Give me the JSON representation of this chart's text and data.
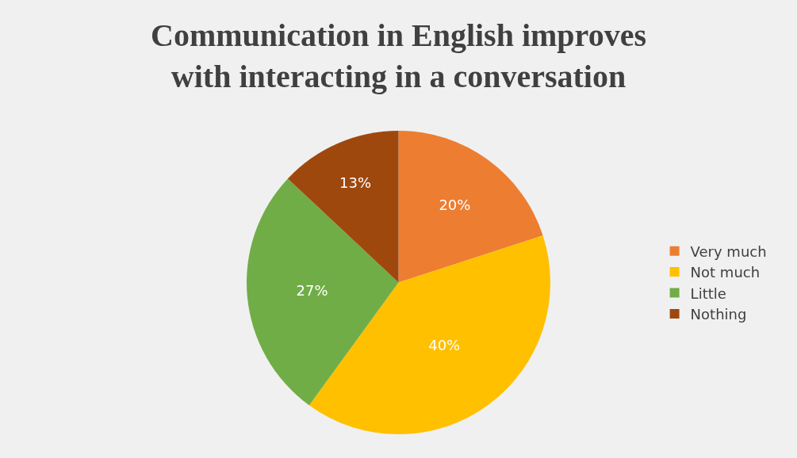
{
  "chart_data": {
    "type": "pie",
    "title": "Communication in English improves\nwith interacting in a conversation",
    "categories": [
      "Very much",
      "Not much",
      "Little",
      "Nothing"
    ],
    "values": [
      20,
      40,
      27,
      13
    ],
    "colors": [
      "#ed7d31",
      "#ffc000",
      "#70ad47",
      "#9e480e"
    ],
    "value_labels": [
      "20%",
      "40%",
      "27%",
      "13%"
    ],
    "legend": "right"
  }
}
